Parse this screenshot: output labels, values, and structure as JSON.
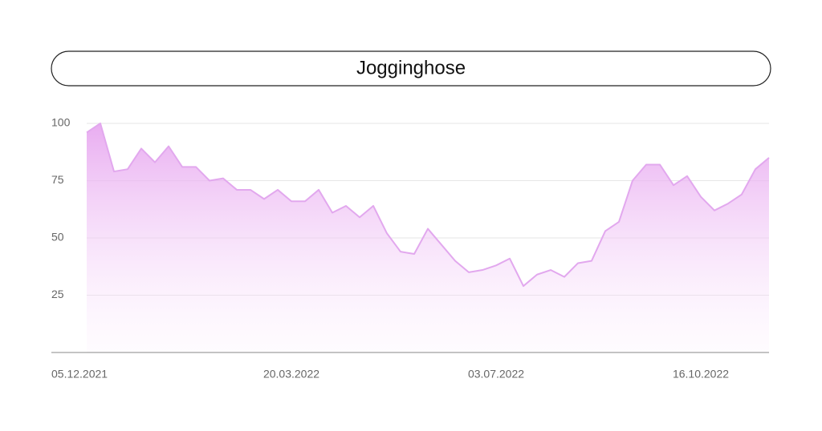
{
  "chart_data": {
    "type": "area",
    "title": "Jogginghose",
    "categories": [
      "05.12.2021",
      null,
      null,
      null,
      null,
      null,
      null,
      null,
      null,
      null,
      null,
      null,
      null,
      null,
      null,
      "20.03.2022",
      null,
      null,
      null,
      null,
      null,
      null,
      null,
      null,
      null,
      null,
      null,
      null,
      null,
      null,
      "03.07.2022",
      null,
      null,
      null,
      null,
      null,
      null,
      null,
      null,
      null,
      null,
      null,
      null,
      null,
      null,
      "16.10.2022",
      null,
      null,
      null,
      null,
      null
    ],
    "values": [
      96,
      100,
      79,
      80,
      89,
      83,
      90,
      81,
      81,
      75,
      76,
      71,
      71,
      67,
      71,
      66,
      66,
      71,
      61,
      64,
      59,
      64,
      52,
      44,
      43,
      54,
      47,
      40,
      35,
      36,
      38,
      41,
      29,
      34,
      36,
      33,
      39,
      40,
      53,
      57,
      75,
      82,
      82,
      73,
      77,
      68,
      62,
      65,
      69,
      80,
      85
    ],
    "color": "#e2a8ee",
    "ylim": [
      0,
      100
    ],
    "yticks": [
      25,
      50,
      75,
      100
    ],
    "grid": true
  }
}
